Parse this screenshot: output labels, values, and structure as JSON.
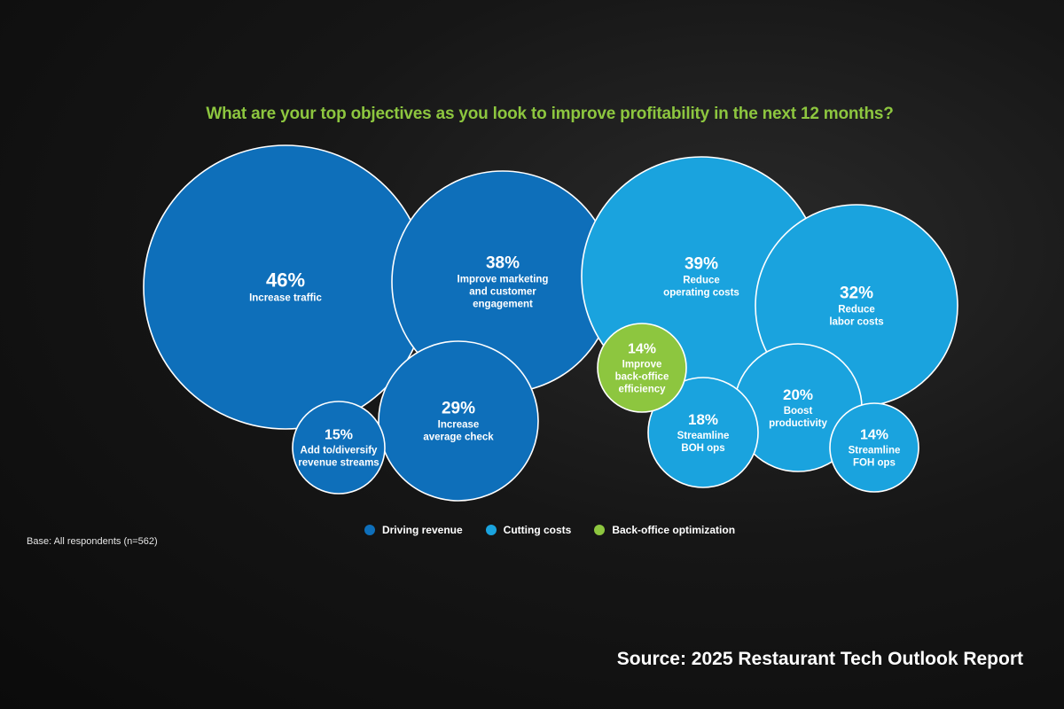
{
  "chart_data": {
    "type": "bubble",
    "title": "What are your top objectives as you look to improve profitability in the next 12 months?",
    "unit": "%",
    "legend": [
      {
        "name": "Driving revenue",
        "color": "#0e6fba"
      },
      {
        "name": "Cutting costs",
        "color": "#1aa3de"
      },
      {
        "name": "Back-office optimization",
        "color": "#8dc63f"
      }
    ],
    "bubbles": [
      {
        "value": 46,
        "label": [
          "Increase traffic"
        ],
        "category": "Driving revenue"
      },
      {
        "value": 38,
        "label": [
          "Improve marketing",
          "and customer",
          "engagement"
        ],
        "category": "Driving revenue"
      },
      {
        "value": 29,
        "label": [
          "Increase",
          "average check"
        ],
        "category": "Driving revenue"
      },
      {
        "value": 15,
        "label": [
          "Add to/diversify",
          "revenue streams"
        ],
        "category": "Driving revenue"
      },
      {
        "value": 39,
        "label": [
          "Reduce",
          "operating costs"
        ],
        "category": "Cutting costs"
      },
      {
        "value": 32,
        "label": [
          "Reduce",
          "labor costs"
        ],
        "category": "Cutting costs"
      },
      {
        "value": 20,
        "label": [
          "Boost",
          "productivity"
        ],
        "category": "Cutting costs"
      },
      {
        "value": 18,
        "label": [
          "Streamline",
          "BOH ops"
        ],
        "category": "Cutting costs"
      },
      {
        "value": 14,
        "label": [
          "Streamline",
          "FOH ops"
        ],
        "category": "Cutting costs"
      },
      {
        "value": 14,
        "label": [
          "Improve",
          "back-office",
          "efficiency"
        ],
        "category": "Back-office optimization"
      }
    ]
  },
  "base_note": "Base: All respondents (n=562)",
  "source_note": "Source: 2025 Restaurant Tech Outlook Report"
}
